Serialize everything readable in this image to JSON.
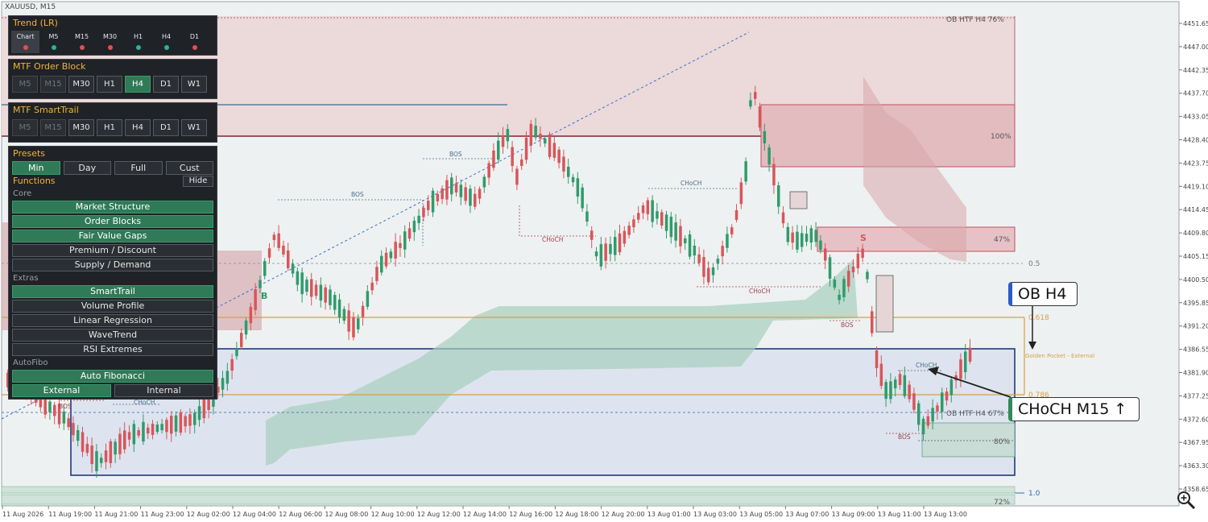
{
  "symbol": "XAUUSD, M15",
  "price_axis": [
    "4451.65",
    "4447.00",
    "4442.35",
    "4437.70",
    "4433.05",
    "4428.40",
    "4423.75",
    "4419.10",
    "4414.45",
    "4409.80",
    "4405.15",
    "4400.50",
    "4395.85",
    "4391.20",
    "4386.55",
    "4381.90",
    "4377.25",
    "4372.60",
    "4367.95",
    "4363.30",
    "4358.65"
  ],
  "time_axis": [
    "11 Aug 2026",
    "11 Aug 19:00",
    "11 Aug 21:00",
    "11 Aug 23:00",
    "12 Aug 02:00",
    "12 Aug 04:00",
    "12 Aug 06:00",
    "12 Aug 08:00",
    "12 Aug 10:00",
    "12 Aug 12:00",
    "12 Aug 14:00",
    "12 Aug 16:00",
    "12 Aug 18:00",
    "12 Aug 20:00",
    "13 Aug 01:00",
    "13 Aug 03:00",
    "13 Aug 05:00",
    "13 Aug 07:00",
    "13 Aug 09:00",
    "13 Aug 11:00",
    "13 Aug 13:00"
  ],
  "chart_labels": {
    "ob_htf_top": "OB HTF H4 76%",
    "ob_htf_mid": "OB HTF H4 67%",
    "pct_100": "100%",
    "pct_47": "47%",
    "pct_80": "80%",
    "pct_72": "72%",
    "fib_05": "0.5",
    "fib_0618": "0.618",
    "fib_0786": "0.786",
    "fib_10": "1.0",
    "golden_pocket": "Golden Pocket - External",
    "bos": "BOS",
    "choch": "CHoCH",
    "buy_marker": "B",
    "sell_marker": "S"
  },
  "callouts": {
    "ob_h4": "OB H4",
    "choch_m15": "CHoCH M15 ↑"
  },
  "colors": {
    "bull": "#2f9b6b",
    "bear": "#d9555a",
    "ob_bear_fill": "#f0d6d8",
    "ob_bull_fill": "#dfe6f2",
    "trail": "#8fc2aa",
    "fib": "#d4a04a",
    "accent": "#f2b33d",
    "active_btn": "#2f7a57"
  },
  "panel": {
    "trend": {
      "title": "Trend (LR)",
      "cells": [
        {
          "label": "Chart",
          "color": "#e05050"
        },
        {
          "label": "M5",
          "color": "#2bb39a"
        },
        {
          "label": "M15",
          "color": "#e05050"
        },
        {
          "label": "M30",
          "color": "#e05050"
        },
        {
          "label": "H1",
          "color": "#2bb39a"
        },
        {
          "label": "H4",
          "color": "#2bb39a"
        },
        {
          "label": "D1",
          "color": "#e05050"
        }
      ]
    },
    "order_block": {
      "title": "MTF Order Block",
      "buttons": [
        "M5",
        "M15",
        "M30",
        "H1",
        "H4",
        "D1",
        "W1"
      ]
    },
    "smart_trail": {
      "title": "MTF SmartTrail",
      "buttons": [
        "M5",
        "M15",
        "M30",
        "H1",
        "H4",
        "D1",
        "W1"
      ]
    },
    "presets": {
      "title": "Presets",
      "buttons": [
        "Min",
        "Day",
        "Full",
        "Cust"
      ]
    },
    "functions": {
      "title": "Functions",
      "hide": "Hide",
      "core_label": "Core",
      "core": [
        "Market Structure",
        "Order Blocks",
        "Fair Value Gaps",
        "Premium / Discount",
        "Supply / Demand"
      ],
      "extras_label": "Extras",
      "extras": [
        "SmartTrail",
        "Volume Profile",
        "Linear Regression",
        "WaveTrend",
        "RSI Extremes"
      ],
      "autofibo_label": "AutoFibo",
      "autofibo": "Auto Fibonacci",
      "external": "External",
      "internal": "Internal"
    }
  }
}
